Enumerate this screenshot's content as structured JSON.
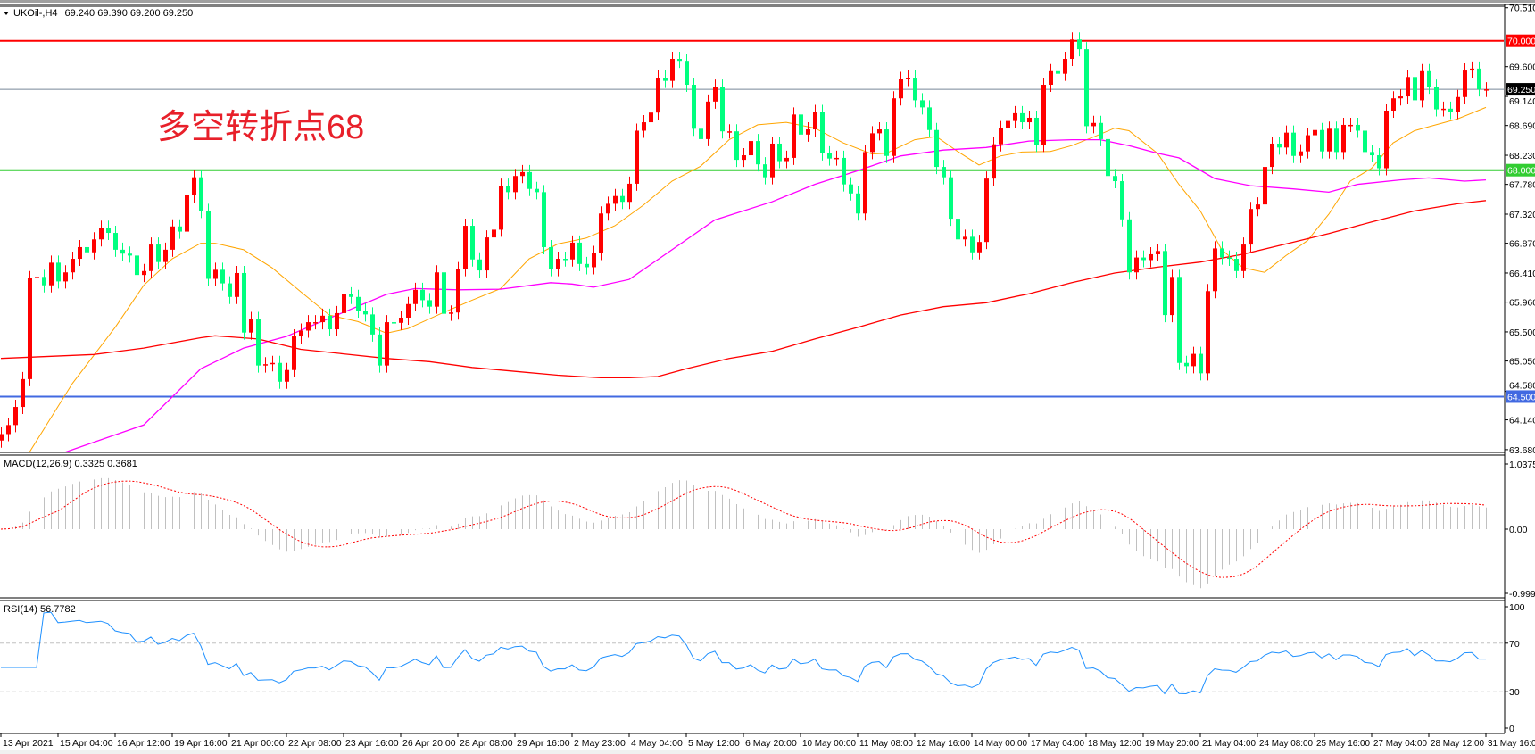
{
  "header": {
    "symbol": "UKOil-,H4",
    "ohlc": "69.240 69.390 69.200 69.250",
    "menu_icon": "triangle-down-icon"
  },
  "annotation": "多空转折点68",
  "chart_data": {
    "type": "candlestick",
    "timeframe": "H4",
    "up_color": "#ff0000",
    "down_color": "#00ff7f",
    "ylim": [
      63.68,
      70.51
    ],
    "last_open": 69.24,
    "closes": [
      63.92,
      64.06,
      64.34,
      64.77,
      66.33,
      66.35,
      66.22,
      66.57,
      66.28,
      66.42,
      66.63,
      66.81,
      66.73,
      66.93,
      67.11,
      67.03,
      66.77,
      66.71,
      66.68,
      66.38,
      66.44,
      66.85,
      66.58,
      66.77,
      67.13,
      67.05,
      67.61,
      67.89,
      67.37,
      66.32,
      66.46,
      66.25,
      66.04,
      66.41,
      65.49,
      65.7,
      64.98,
      65.0,
      65.02,
      64.73,
      64.91,
      65.43,
      65.52,
      65.65,
      65.65,
      65.75,
      65.54,
      65.79,
      66.08,
      66.04,
      65.83,
      65.77,
      65.46,
      64.98,
      65.65,
      65.64,
      65.72,
      65.93,
      66.15,
      65.99,
      65.89,
      66.42,
      65.78,
      65.8,
      66.47,
      67.14,
      66.62,
      66.45,
      66.96,
      67.08,
      67.76,
      67.66,
      67.91,
      67.97,
      67.71,
      67.66,
      66.81,
      66.47,
      66.63,
      66.62,
      66.88,
      66.55,
      66.5,
      66.72,
      67.33,
      67.48,
      67.6,
      67.51,
      67.79,
      68.61,
      68.74,
      68.89,
      69.43,
      69.38,
      69.72,
      69.69,
      69.32,
      68.64,
      68.48,
      69.06,
      69.29,
      68.6,
      68.6,
      68.16,
      68.23,
      68.45,
      68.09,
      67.89,
      68.41,
      68.14,
      68.19,
      68.86,
      68.55,
      68.63,
      68.9,
      68.26,
      68.18,
      68.19,
      67.78,
      67.64,
      67.33,
      68.28,
      68.57,
      68.63,
      68.22,
      69.11,
      69.41,
      69.43,
      69.08,
      68.97,
      68.62,
      68.05,
      67.89,
      67.25,
      66.93,
      66.97,
      66.73,
      66.89,
      67.87,
      68.4,
      68.65,
      68.76,
      68.88,
      68.74,
      68.81,
      68.39,
      69.32,
      69.53,
      69.49,
      69.72,
      70.02,
      69.87,
      68.68,
      68.73,
      68.48,
      67.91,
      67.83,
      67.24,
      66.42,
      66.65,
      66.61,
      66.7,
      66.75,
      65.76,
      66.35,
      65.02,
      64.97,
      65.16,
      64.86,
      66.13,
      66.79,
      66.65,
      66.63,
      66.44,
      66.85,
      67.4,
      67.47,
      68.05,
      68.41,
      68.35,
      68.58,
      68.22,
      68.29,
      68.54,
      68.62,
      68.29,
      68.64,
      68.28,
      68.7,
      68.7,
      68.61,
      68.28,
      68.23,
      68.03,
      68.92,
      69.11,
      69.14,
      69.44,
      69.08,
      69.53,
      69.29,
      68.94,
      68.95,
      68.9,
      69.13,
      69.54,
      69.57,
      69.25,
      69.25
    ],
    "ma_lines": [
      {
        "color": "#ffa500",
        "points": [
          [
            3,
            63.5
          ],
          [
            4,
            63.64
          ],
          [
            10,
            64.7
          ],
          [
            16,
            65.57
          ],
          [
            20,
            66.22
          ],
          [
            24,
            66.63
          ],
          [
            28,
            66.87
          ],
          [
            30,
            66.87
          ],
          [
            34,
            66.77
          ],
          [
            38,
            66.49
          ],
          [
            42,
            66.12
          ],
          [
            46,
            65.76
          ],
          [
            50,
            65.66
          ],
          [
            54,
            65.48
          ],
          [
            57,
            65.55
          ],
          [
            62,
            65.8
          ],
          [
            66,
            65.99
          ],
          [
            70,
            66.17
          ],
          [
            74,
            66.63
          ],
          [
            78,
            66.86
          ],
          [
            82,
            66.95
          ],
          [
            86,
            67.14
          ],
          [
            90,
            67.46
          ],
          [
            94,
            67.83
          ],
          [
            98,
            68.06
          ],
          [
            102,
            68.47
          ],
          [
            106,
            68.7
          ],
          [
            110,
            68.74
          ],
          [
            114,
            68.65
          ],
          [
            118,
            68.42
          ],
          [
            122,
            68.25
          ],
          [
            124,
            68.26
          ],
          [
            128,
            68.47
          ],
          [
            131,
            68.52
          ],
          [
            134,
            68.29
          ],
          [
            137,
            68.08
          ],
          [
            140,
            68.22
          ],
          [
            143,
            68.28
          ],
          [
            147,
            68.29
          ],
          [
            150,
            68.38
          ],
          [
            153,
            68.51
          ],
          [
            156,
            68.65
          ],
          [
            158,
            68.61
          ],
          [
            162,
            68.26
          ],
          [
            165,
            67.78
          ],
          [
            168,
            67.37
          ],
          [
            171,
            66.77
          ],
          [
            174,
            66.49
          ],
          [
            177,
            66.42
          ],
          [
            180,
            66.68
          ],
          [
            183,
            66.91
          ],
          [
            186,
            67.32
          ],
          [
            189,
            67.83
          ],
          [
            192,
            68.03
          ],
          [
            195,
            68.42
          ],
          [
            198,
            68.61
          ],
          [
            201,
            68.7
          ],
          [
            204,
            68.79
          ],
          [
            208,
            68.97
          ]
        ]
      },
      {
        "color": "#ff00ff",
        "points": [
          [
            9,
            63.64
          ],
          [
            20,
            64.06
          ],
          [
            28,
            64.93
          ],
          [
            34,
            65.25
          ],
          [
            40,
            65.43
          ],
          [
            46,
            65.71
          ],
          [
            54,
            66.08
          ],
          [
            58,
            66.17
          ],
          [
            64,
            66.15
          ],
          [
            70,
            66.16
          ],
          [
            77,
            66.26
          ],
          [
            80,
            66.24
          ],
          [
            83,
            66.19
          ],
          [
            88,
            66.31
          ],
          [
            94,
            66.77
          ],
          [
            100,
            67.23
          ],
          [
            108,
            67.51
          ],
          [
            114,
            67.78
          ],
          [
            120,
            67.99
          ],
          [
            126,
            68.22
          ],
          [
            132,
            68.31
          ],
          [
            138,
            68.35
          ],
          [
            144,
            68.45
          ],
          [
            150,
            68.47
          ],
          [
            154,
            68.47
          ],
          [
            158,
            68.38
          ],
          [
            162,
            68.26
          ],
          [
            165,
            68.19
          ],
          [
            170,
            67.87
          ],
          [
            175,
            67.76
          ],
          [
            181,
            67.71
          ],
          [
            186,
            67.66
          ],
          [
            190,
            67.78
          ],
          [
            196,
            67.85
          ],
          [
            200,
            67.88
          ],
          [
            205,
            67.83
          ],
          [
            208,
            67.85
          ]
        ]
      },
      {
        "color": "#ff0000",
        "points": [
          [
            0,
            65.09
          ],
          [
            13,
            65.15
          ],
          [
            20,
            65.25
          ],
          [
            28,
            65.41
          ],
          [
            30,
            65.44
          ],
          [
            36,
            65.39
          ],
          [
            42,
            65.23
          ],
          [
            48,
            65.16
          ],
          [
            54,
            65.09
          ],
          [
            60,
            65.04
          ],
          [
            66,
            64.95
          ],
          [
            72,
            64.89
          ],
          [
            78,
            64.83
          ],
          [
            84,
            64.79
          ],
          [
            88,
            64.79
          ],
          [
            92,
            64.81
          ],
          [
            96,
            64.93
          ],
          [
            102,
            65.09
          ],
          [
            108,
            65.2
          ],
          [
            114,
            65.39
          ],
          [
            120,
            65.57
          ],
          [
            126,
            65.76
          ],
          [
            132,
            65.89
          ],
          [
            138,
            65.95
          ],
          [
            144,
            66.09
          ],
          [
            150,
            66.26
          ],
          [
            156,
            66.41
          ],
          [
            162,
            66.5
          ],
          [
            168,
            66.58
          ],
          [
            174,
            66.7
          ],
          [
            180,
            66.86
          ],
          [
            186,
            67.02
          ],
          [
            192,
            67.2
          ],
          [
            198,
            67.37
          ],
          [
            204,
            67.48
          ],
          [
            208,
            67.53
          ]
        ]
      }
    ],
    "levels": [
      {
        "value": 70.0,
        "label": "70.000",
        "color": "#ff0000"
      },
      {
        "value": 68.0,
        "label": "68.000",
        "color": "#32cd32"
      },
      {
        "value": 64.5,
        "label": "64.500",
        "color": "#4169e1"
      }
    ],
    "current_price": {
      "value": 69.25,
      "label": "69.250",
      "color": "#000000",
      "line_color": "#778899"
    },
    "price_ticks": [
      "70.510",
      "69.600",
      "69.140",
      "68.690",
      "68.230",
      "67.780",
      "67.320",
      "66.870",
      "66.410",
      "65.960",
      "65.500",
      "65.050",
      "64.580",
      "64.140",
      "63.680"
    ],
    "time_labels": [
      "13 Apr 2021",
      "15 Apr 04:00",
      "16 Apr 12:00",
      "19 Apr 16:00",
      "21 Apr 00:00",
      "22 Apr 08:00",
      "23 Apr 16:00",
      "26 Apr 20:00",
      "28 Apr 08:00",
      "29 Apr 16:00",
      "2 May 23:00",
      "4 May 04:00",
      "5 May 12:00",
      "6 May 20:00",
      "10 May 00:00",
      "11 May 08:00",
      "12 May 16:00",
      "14 May 00:00",
      "17 May 04:00",
      "18 May 12:00",
      "19 May 20:00",
      "21 May 04:00",
      "24 May 08:00",
      "25 May 16:00",
      "27 May 04:00",
      "28 May 12:00",
      "31 May 16:00"
    ]
  },
  "macd": {
    "label": "MACD(12,26,9) 0.3325 0.3681",
    "ticks": [
      "1.0375",
      "0.00",
      "-0.9994"
    ],
    "hist_color": "#c0c0c0",
    "signal_color": "#ff0000"
  },
  "rsi": {
    "label": "RSI(14) 56.7782",
    "ticks": [
      "100",
      "70",
      "30",
      "0"
    ],
    "line_color": "#1e90ff",
    "levels": [
      70,
      30
    ]
  }
}
